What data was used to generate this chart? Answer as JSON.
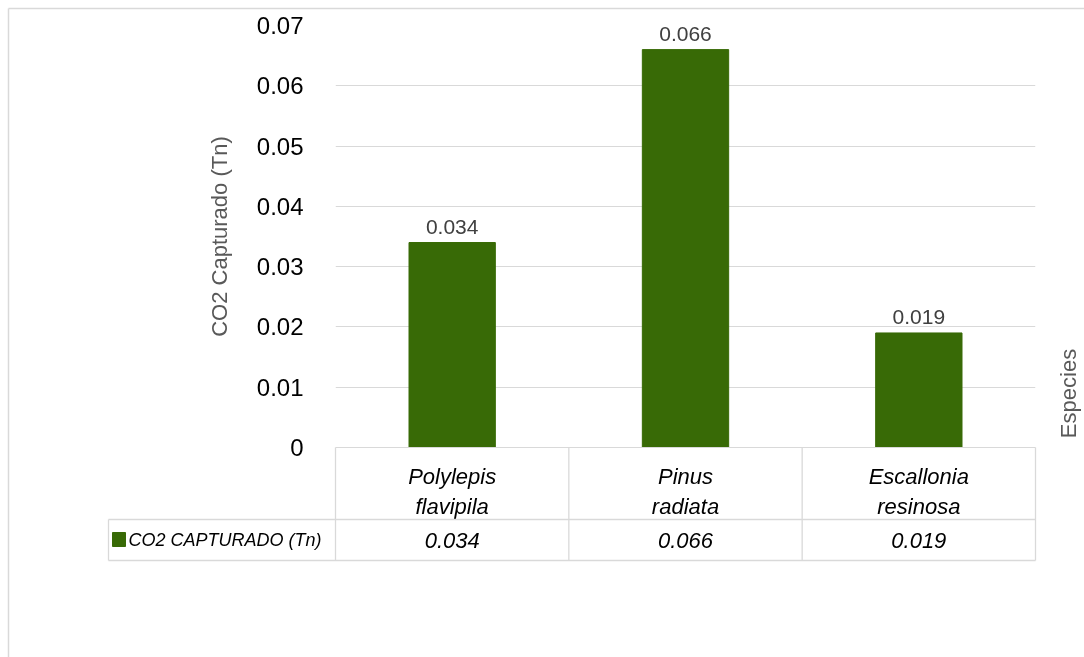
{
  "chart_data": {
    "type": "bar",
    "categories": [
      "Polylepis flavipila",
      "Pinus radiata",
      "Escallonia resinosa"
    ],
    "series": [
      {
        "name": "CO2 CAPTURADO (Tn)",
        "color": "#386a06",
        "values": [
          0.034,
          0.066,
          0.019
        ],
        "value_labels": [
          "0.034",
          "0.066",
          "0.019"
        ]
      }
    ],
    "ylabel": "CO2 Capturado (Tn)",
    "annotations": [
      "Especies"
    ],
    "ylim": [
      0,
      0.07
    ],
    "yticks": [
      0,
      0.01,
      0.02,
      0.03,
      0.04,
      0.05,
      0.06,
      0.07
    ],
    "grid": "y",
    "legend": "bottom left",
    "data_labels": true
  }
}
